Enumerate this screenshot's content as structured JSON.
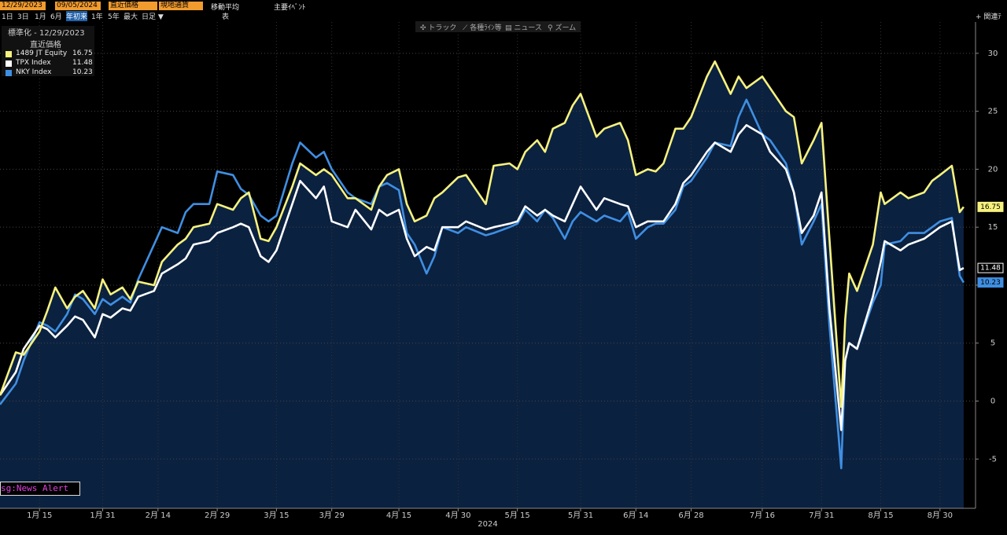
{
  "ui": {
    "start_date": "12/29/2023",
    "end_date": "09/05/2024",
    "price_field": "直近価格",
    "currency": "現地通貨",
    "moving_avg": "移動平均",
    "events": "主要ｲﾍﾞﾝﾄ",
    "periods": [
      "1日",
      "3日",
      "1月",
      "6月",
      "年初来",
      "1年",
      "5年",
      "最大",
      "日足 ▼"
    ],
    "table": "表",
    "related": "+ 関連ﾃ",
    "tools": [
      "✣ トラック",
      "⟋ 各種ﾗｲﾝ等",
      "▤ ニュース",
      "⚲ ズーム"
    ],
    "news_alert": "sg:News Alert"
  },
  "chart_data": {
    "type": "line",
    "legend_title": "標準化 - 12/29/2023",
    "legend_subtitle": "直近価格",
    "x_year_label": "2024",
    "grid": true,
    "xlim": [
      "2024-01-05",
      "2024-09-08"
    ],
    "ylim": [
      -9.25,
      32.7
    ],
    "yticks": [
      -5,
      0,
      5,
      10,
      15,
      20,
      25,
      30
    ],
    "xticks": [
      {
        "value": "2024-01-15",
        "label": "1月 15"
      },
      {
        "value": "2024-01-31",
        "label": "1月 31"
      },
      {
        "value": "2024-02-14",
        "label": "2月 14"
      },
      {
        "value": "2024-02-29",
        "label": "2月 29"
      },
      {
        "value": "2024-03-15",
        "label": "3月 15"
      },
      {
        "value": "2024-03-29",
        "label": "3月 29"
      },
      {
        "value": "2024-04-15",
        "label": "4月 15"
      },
      {
        "value": "2024-04-30",
        "label": "4月 30"
      },
      {
        "value": "2024-05-15",
        "label": "5月 15"
      },
      {
        "value": "2024-05-31",
        "label": "5月 31"
      },
      {
        "value": "2024-06-14",
        "label": "6月 14"
      },
      {
        "value": "2024-06-28",
        "label": "6月 28"
      },
      {
        "value": "2024-07-16",
        "label": "7月 16"
      },
      {
        "value": "2024-07-31",
        "label": "7月 31"
      },
      {
        "value": "2024-08-15",
        "label": "8月 15"
      },
      {
        "value": "2024-08-30",
        "label": "8月 30"
      }
    ],
    "x": [
      "2024-01-05",
      "2024-01-09",
      "2024-01-11",
      "2024-01-15",
      "2024-01-17",
      "2024-01-19",
      "2024-01-22",
      "2024-01-24",
      "2024-01-26",
      "2024-01-29",
      "2024-01-31",
      "2024-02-02",
      "2024-02-05",
      "2024-02-07",
      "2024-02-09",
      "2024-02-13",
      "2024-02-15",
      "2024-02-19",
      "2024-02-21",
      "2024-02-23",
      "2024-02-27",
      "2024-02-29",
      "2024-03-04",
      "2024-03-06",
      "2024-03-08",
      "2024-03-11",
      "2024-03-13",
      "2024-03-15",
      "2024-03-19",
      "2024-03-21",
      "2024-03-25",
      "2024-03-27",
      "2024-03-29",
      "2024-04-02",
      "2024-04-04",
      "2024-04-08",
      "2024-04-10",
      "2024-04-12",
      "2024-04-15",
      "2024-04-17",
      "2024-04-19",
      "2024-04-22",
      "2024-04-24",
      "2024-04-26",
      "2024-04-30",
      "2024-05-02",
      "2024-05-07",
      "2024-05-09",
      "2024-05-13",
      "2024-05-15",
      "2024-05-17",
      "2024-05-20",
      "2024-05-22",
      "2024-05-24",
      "2024-05-27",
      "2024-05-29",
      "2024-05-31",
      "2024-06-04",
      "2024-06-06",
      "2024-06-10",
      "2024-06-12",
      "2024-06-14",
      "2024-06-17",
      "2024-06-19",
      "2024-06-21",
      "2024-06-24",
      "2024-06-26",
      "2024-06-28",
      "2024-07-02",
      "2024-07-04",
      "2024-07-08",
      "2024-07-10",
      "2024-07-12",
      "2024-07-16",
      "2024-07-18",
      "2024-07-22",
      "2024-07-24",
      "2024-07-26",
      "2024-07-29",
      "2024-07-31",
      "2024-08-02",
      "2024-08-05",
      "2024-08-06",
      "2024-08-07",
      "2024-08-09",
      "2024-08-13",
      "2024-08-15",
      "2024-08-16",
      "2024-08-20",
      "2024-08-22",
      "2024-08-26",
      "2024-08-28",
      "2024-08-30",
      "2024-09-02",
      "2024-09-04",
      "2024-09-05"
    ],
    "series": [
      {
        "name": "1489 JT Equity",
        "color": "#f7f27e",
        "values": [
          0.5,
          4.2,
          4.0,
          6.0,
          7.8,
          9.8,
          8.0,
          9.0,
          9.5,
          8.0,
          10.5,
          9.2,
          9.8,
          8.8,
          10.3,
          10.0,
          12.0,
          13.5,
          14.0,
          15.0,
          15.3,
          17.0,
          16.5,
          17.5,
          18.0,
          14.0,
          13.8,
          15.0,
          18.5,
          20.5,
          19.5,
          20.0,
          19.5,
          17.5,
          17.5,
          16.5,
          18.5,
          19.5,
          20.0,
          17.0,
          15.5,
          16.0,
          17.5,
          18.0,
          19.3,
          19.5,
          17.0,
          20.3,
          20.5,
          20.0,
          21.5,
          22.5,
          21.5,
          23.5,
          24.0,
          25.5,
          26.5,
          22.8,
          23.5,
          24.0,
          22.5,
          19.5,
          20.0,
          19.8,
          20.5,
          23.5,
          23.5,
          24.5,
          28.0,
          29.3,
          26.5,
          28.0,
          27.0,
          28.0,
          27.0,
          25.0,
          24.5,
          20.5,
          22.5,
          24.0,
          14.0,
          -0.5,
          7.0,
          11.0,
          9.5,
          13.5,
          18.0,
          17.0,
          18.0,
          17.5,
          18.0,
          19.0,
          19.5,
          20.3,
          16.3,
          16.75
        ]
      },
      {
        "name": "TPX Index",
        "color": "#ffffff",
        "values": [
          0.5,
          2.5,
          4.5,
          6.5,
          6.2,
          5.5,
          6.5,
          7.3,
          7.0,
          5.5,
          7.5,
          7.2,
          8.0,
          7.8,
          9.0,
          9.5,
          11.0,
          11.8,
          12.3,
          13.5,
          13.8,
          14.5,
          15.0,
          15.3,
          15.0,
          12.5,
          12.0,
          13.0,
          17.0,
          19.0,
          17.5,
          18.5,
          15.5,
          15.0,
          16.5,
          14.8,
          16.5,
          16.0,
          16.5,
          14.0,
          12.5,
          13.3,
          13.0,
          15.0,
          15.0,
          15.5,
          14.8,
          15.0,
          15.3,
          15.5,
          16.8,
          16.0,
          16.5,
          16.0,
          15.5,
          17.0,
          18.5,
          16.5,
          17.5,
          17.0,
          16.8,
          15.0,
          15.5,
          15.5,
          15.5,
          17.0,
          18.8,
          19.5,
          21.5,
          22.3,
          21.5,
          23.0,
          23.8,
          23.0,
          21.5,
          20.0,
          18.0,
          14.5,
          16.0,
          18.0,
          8.0,
          -2.5,
          3.5,
          5.0,
          4.5,
          9.0,
          12.0,
          13.8,
          13.0,
          13.5,
          14.0,
          14.5,
          15.0,
          15.5,
          11.3,
          11.48
        ]
      },
      {
        "name": "NKY Index",
        "color": "#3f8fe2",
        "values": [
          -0.3,
          1.5,
          3.5,
          6.8,
          6.5,
          6.0,
          7.5,
          9.2,
          8.8,
          7.5,
          8.8,
          8.3,
          9.0,
          8.5,
          10.5,
          13.5,
          15.0,
          14.5,
          16.3,
          17.0,
          17.0,
          19.8,
          19.5,
          18.3,
          17.8,
          16.0,
          15.5,
          16.0,
          20.5,
          22.3,
          21.0,
          21.5,
          20.0,
          18.0,
          17.5,
          17.0,
          18.5,
          18.8,
          18.2,
          14.5,
          13.5,
          11.0,
          12.5,
          15.0,
          14.5,
          15.0,
          14.3,
          14.5,
          15.0,
          15.3,
          16.5,
          15.5,
          16.5,
          15.8,
          14.0,
          15.5,
          16.3,
          15.5,
          16.0,
          15.5,
          16.3,
          14.0,
          15.0,
          15.3,
          15.3,
          16.5,
          18.5,
          19.0,
          21.0,
          22.3,
          22.0,
          24.5,
          26.0,
          23.0,
          22.5,
          20.5,
          18.0,
          13.5,
          15.5,
          17.0,
          6.5,
          -5.8,
          3.5,
          5.0,
          4.5,
          8.5,
          10.0,
          13.5,
          13.8,
          14.5,
          14.5,
          15.0,
          15.5,
          15.8,
          10.8,
          10.23
        ]
      }
    ]
  }
}
